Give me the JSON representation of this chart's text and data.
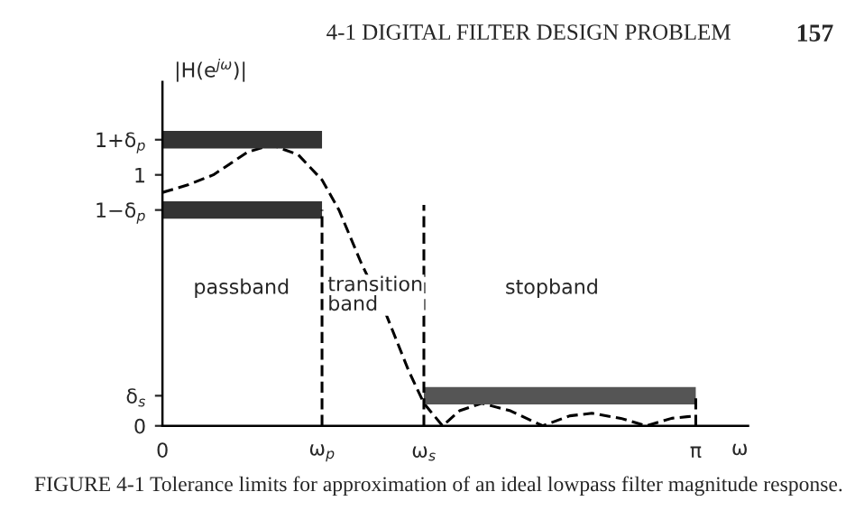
{
  "chart_data": {
    "type": "line",
    "ylabel": "|H(e$^{jω}$)|",
    "xlabel": "ω",
    "xlim": [
      0,
      3.45
    ],
    "ylim": [
      0,
      1.37
    ],
    "xticks": [
      0,
      {
        "value": 0.94,
        "label": "ω$_{p}$"
      },
      {
        "value": 1.54,
        "label": "ω$_{s}$"
      },
      {
        "value": 3.14159,
        "label": "π"
      }
    ],
    "yticks": [
      0,
      {
        "value": 0.12,
        "label": "δ$_{s}$"
      },
      {
        "value": 0.86,
        "label": "1−δ$_{p}$"
      },
      1,
      {
        "value": 1.14,
        "label": "1+δ$_{p}$"
      }
    ],
    "series": [
      {
        "color": "#000000",
        "line_style": "dashed",
        "x": [
          0,
          0.15,
          0.3,
          0.5,
          0.64,
          0.8,
          0.94,
          1.04,
          1.17,
          1.32,
          1.45,
          1.54,
          1.65,
          1.75,
          1.88,
          2.05,
          2.24,
          2.4,
          2.53,
          2.7,
          2.85,
          3.0,
          3.14159
        ],
        "values": [
          0.93,
          0.96,
          1.0,
          1.09,
          1.12,
          1.08,
          0.98,
          0.86,
          0.65,
          0.44,
          0.22,
          0.09,
          0.0,
          0.06,
          0.09,
          0.06,
          0.0,
          0.04,
          0.05,
          0.03,
          0.0,
          0.03,
          0.04
        ]
      },
      {
        "color": "#333333",
        "line_style": "solid",
        "x": [
          0,
          0.94
        ],
        "values": [
          1.14,
          1.14
        ]
      },
      {
        "color": "#333333",
        "line_style": "solid",
        "x": [
          0,
          0.94
        ],
        "values": [
          0.86,
          0.86
        ]
      },
      {
        "color": "#555555",
        "line_style": "solid",
        "x": [
          1.54,
          3.14159
        ],
        "values": [
          0.12,
          0.12
        ]
      },
      {
        "color": "#000000",
        "line_style": "dashed",
        "x": [
          0.94,
          0.94
        ],
        "values": [
          0,
          0.86
        ]
      },
      {
        "color": "#000000",
        "line_style": "dashed",
        "x": [
          1.54,
          1.54
        ],
        "values": [
          0,
          0.88
        ]
      },
      {
        "color": "#000000",
        "line_style": "dashed",
        "x": [
          3.14159,
          3.14159
        ],
        "values": [
          0,
          0.12
        ]
      }
    ],
    "annotations": [
      "4-1 DIGITAL FILTER DESIGN PROBLEM",
      "157",
      "FIGURE 4-1 Tolerance limits for approximation of an ideal lowpass filter magnitude response.",
      "passband",
      "transition\nband",
      "stopband"
    ]
  }
}
